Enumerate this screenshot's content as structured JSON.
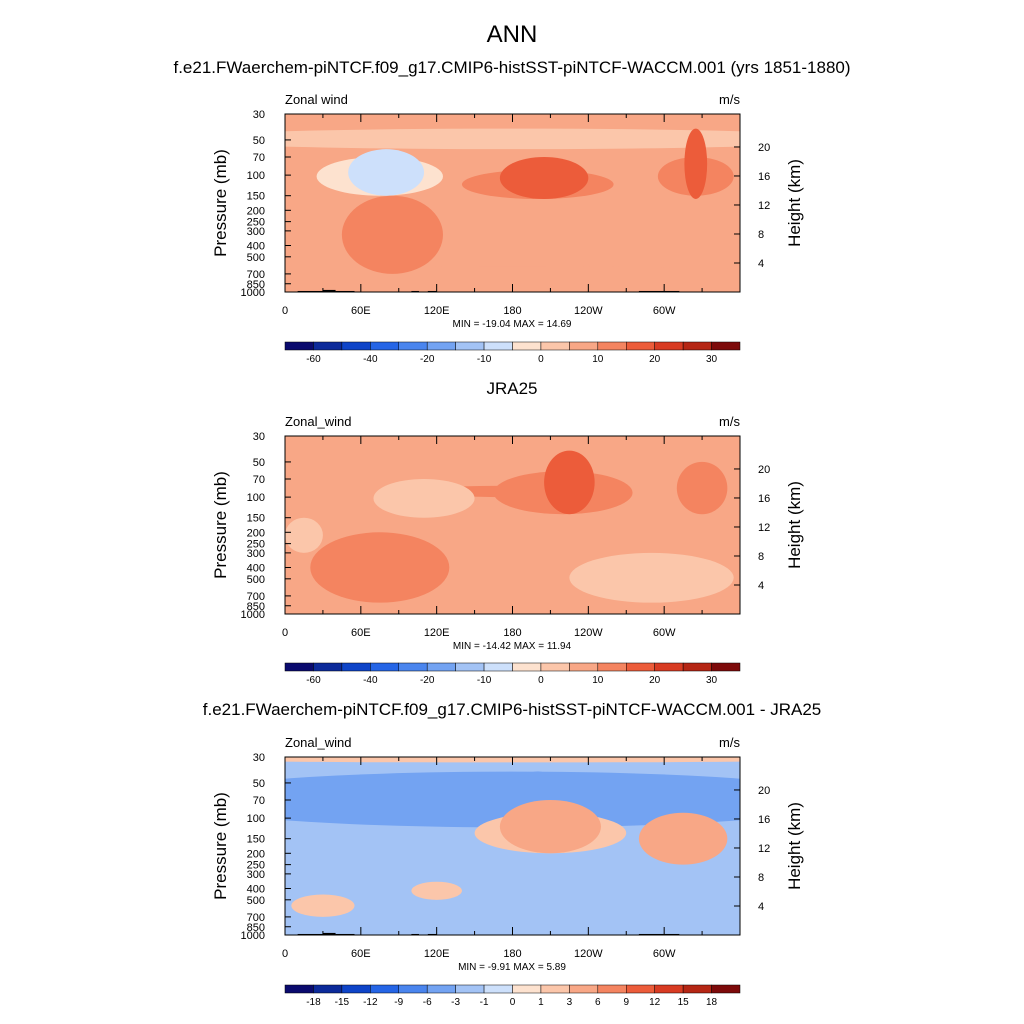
{
  "figure": {
    "title": "ANN"
  },
  "colors": {
    "full_scale": [
      "#0a0a6e",
      "#0c2a9a",
      "#0e44c8",
      "#2565e6",
      "#4a85ee",
      "#73a3f2",
      "#a3c3f5",
      "#cde0fb",
      "#fde2cf",
      "#fbc6aa",
      "#f8a786",
      "#f48460",
      "#ec5c3a",
      "#d83b22",
      "#b52614",
      "#7d0a0a"
    ],
    "diff_scale": [
      "#0a0a6e",
      "#0c2a9a",
      "#0e44c8",
      "#2565e6",
      "#4a85ee",
      "#73a3f2",
      "#a3c3f5",
      "#cde0fb",
      "#fde2cf",
      "#fbc6aa",
      "#f8a786",
      "#f48460",
      "#ec5c3a",
      "#d83b22",
      "#b52614",
      "#7d0a0a"
    ]
  },
  "chart_data": [
    {
      "type": "heatmap",
      "title": "f.e21.FWaerchem-piNTCF.f09_g17.CMIP6-histSST-piNTCF-WACCM.001 (yrs 1851-1880)",
      "left_label": "Zonal wind",
      "units": "m/s",
      "ylabel": "Pressure (mb)",
      "y2label": "Height (km)",
      "x_ticks": [
        "0",
        "60E",
        "120E",
        "180",
        "120W",
        "60W"
      ],
      "x_tick_values": [
        0,
        60,
        120,
        180,
        240,
        300
      ],
      "xlim": [
        0,
        360
      ],
      "y_ticks": [
        "30",
        "50",
        "70",
        "100",
        "150",
        "200",
        "250",
        "300",
        "400",
        "500",
        "700",
        "850",
        "1000"
      ],
      "y_tick_values": [
        30,
        50,
        70,
        100,
        150,
        200,
        250,
        300,
        400,
        500,
        700,
        850,
        1000
      ],
      "ylim": [
        1000,
        30
      ],
      "y_scale": "log",
      "y2_ticks": [
        "4",
        "8",
        "12",
        "16",
        "20"
      ],
      "y2_tick_values": [
        4,
        8,
        12,
        16,
        20
      ],
      "stats": "MIN = -19.04  MAX =  14.69",
      "min": -19.04,
      "max": 14.69,
      "colorbar_labels": [
        "-60",
        "-40",
        "-20",
        "-10",
        "0",
        "10",
        "20",
        "30"
      ],
      "colorbar_levels": [
        -70,
        -60,
        -50,
        -40,
        -30,
        -20,
        -15,
        -10,
        -5,
        0,
        5,
        10,
        15,
        20,
        25,
        30
      ],
      "background_value": 2,
      "features": [
        {
          "lon": 0,
          "lon_width": 360,
          "p": 600,
          "p_top": 1000,
          "value": 1.5
        },
        {
          "lon": 0,
          "lon_width": 360,
          "p": 60,
          "p_top": 40,
          "value": -3
        },
        {
          "lon": 75,
          "lon_width": 100,
          "p": 150,
          "p_top": 70,
          "value": -8
        },
        {
          "lon": 80,
          "lon_width": 60,
          "p": 150,
          "p_top": 60,
          "value": -12
        },
        {
          "lon": 200,
          "lon_width": 120,
          "p": 160,
          "p_top": 90,
          "value": 8
        },
        {
          "lon": 205,
          "lon_width": 70,
          "p": 160,
          "p_top": 70,
          "value": 14
        },
        {
          "lon": 325,
          "lon_width": 60,
          "p": 150,
          "p_top": 70,
          "value": 9
        },
        {
          "lon": 325,
          "lon_width": 18,
          "p": 160,
          "p_top": 40,
          "value": 14
        },
        {
          "lon": 85,
          "lon_width": 80,
          "p": 700,
          "p_top": 150,
          "value": 5
        }
      ]
    },
    {
      "type": "heatmap",
      "title": "JRA25",
      "left_label": "Zonal_wind",
      "units": "m/s",
      "ylabel": "Pressure (mb)",
      "y2label": "Height (km)",
      "x_ticks": [
        "0",
        "60E",
        "120E",
        "180",
        "120W",
        "60W"
      ],
      "x_tick_values": [
        0,
        60,
        120,
        180,
        240,
        300
      ],
      "xlim": [
        0,
        360
      ],
      "y_ticks": [
        "30",
        "50",
        "70",
        "100",
        "150",
        "200",
        "250",
        "300",
        "400",
        "500",
        "700",
        "850",
        "1000"
      ],
      "y_tick_values": [
        30,
        50,
        70,
        100,
        150,
        200,
        250,
        300,
        400,
        500,
        700,
        850,
        1000
      ],
      "ylim": [
        1000,
        30
      ],
      "y_scale": "log",
      "y2_ticks": [
        "4",
        "8",
        "12",
        "16",
        "20"
      ],
      "y2_tick_values": [
        4,
        8,
        12,
        16,
        20
      ],
      "stats": "MIN = -14.42  MAX =  11.94",
      "min": -14.42,
      "max": 11.94,
      "colorbar_labels": [
        "-60",
        "-40",
        "-20",
        "-10",
        "0",
        "10",
        "20",
        "30"
      ],
      "colorbar_levels": [
        -70,
        -60,
        -50,
        -40,
        -30,
        -20,
        -15,
        -10,
        -5,
        0,
        5,
        10,
        15,
        20,
        25,
        30
      ],
      "background_value": 2,
      "features": [
        {
          "lon": 180,
          "lon_width": 180,
          "p": 100,
          "p_top": 80,
          "value": 6
        },
        {
          "lon": 220,
          "lon_width": 110,
          "p": 140,
          "p_top": 60,
          "value": 8
        },
        {
          "lon": 225,
          "lon_width": 40,
          "p": 140,
          "p_top": 40,
          "value": 12
        },
        {
          "lon": 330,
          "lon_width": 40,
          "p": 140,
          "p_top": 50,
          "value": 7
        },
        {
          "lon": 15,
          "lon_width": 30,
          "p": 300,
          "p_top": 150,
          "value": -3
        },
        {
          "lon": 110,
          "lon_width": 80,
          "p": 150,
          "p_top": 70,
          "value": -4
        },
        {
          "lon": 290,
          "lon_width": 130,
          "p": 800,
          "p_top": 300,
          "value": -3
        },
        {
          "lon": 75,
          "lon_width": 110,
          "p": 800,
          "p_top": 200,
          "value": 5
        }
      ]
    },
    {
      "type": "heatmap",
      "title": "f.e21.FWaerchem-piNTCF.f09_g17.CMIP6-histSST-piNTCF-WACCM.001 - JRA25",
      "left_label": "Zonal_wind",
      "units": "m/s",
      "ylabel": "Pressure (mb)",
      "y2label": "Height (km)",
      "x_ticks": [
        "0",
        "60E",
        "120E",
        "180",
        "120W",
        "60W"
      ],
      "x_tick_values": [
        0,
        60,
        120,
        180,
        240,
        300
      ],
      "xlim": [
        0,
        360
      ],
      "y_ticks": [
        "30",
        "50",
        "70",
        "100",
        "150",
        "200",
        "250",
        "300",
        "400",
        "500",
        "700",
        "850",
        "1000"
      ],
      "y_tick_values": [
        30,
        50,
        70,
        100,
        150,
        200,
        250,
        300,
        400,
        500,
        700,
        850,
        1000
      ],
      "ylim": [
        1000,
        30
      ],
      "y_scale": "log",
      "y2_ticks": [
        "4",
        "8",
        "12",
        "16",
        "20"
      ],
      "y2_tick_values": [
        4,
        8,
        12,
        16,
        20
      ],
      "stats": "MIN =  -9.91  MAX =   5.89",
      "min": -9.91,
      "max": 5.89,
      "colorbar_labels": [
        "-18",
        "-15",
        "-12",
        "-9",
        "-6",
        "-3",
        "-1",
        "0",
        "1",
        "3",
        "6",
        "9",
        "12",
        "15",
        "18"
      ],
      "colorbar_levels": [
        -18,
        -15,
        -12,
        -9,
        -6,
        -3,
        -1,
        0,
        1,
        3,
        6,
        9,
        12,
        15,
        18
      ],
      "background_value": -2,
      "features": [
        {
          "lon": 0,
          "lon_width": 360,
          "p": 33,
          "p_top": 30,
          "value": 2
        },
        {
          "lon": 0,
          "lon_width": 360,
          "p": 60,
          "p_top": 45,
          "value": -7
        },
        {
          "lon": 200,
          "lon_width": 30,
          "p": 60,
          "p_top": 40,
          "value": -9
        },
        {
          "lon": 0,
          "lon_width": 360,
          "p": 120,
          "p_top": 40,
          "value": -4
        },
        {
          "lon": 210,
          "lon_width": 120,
          "p": 200,
          "p_top": 90,
          "value": 2
        },
        {
          "lon": 210,
          "lon_width": 80,
          "p": 200,
          "p_top": 70,
          "value": 4
        },
        {
          "lon": 315,
          "lon_width": 70,
          "p": 250,
          "p_top": 90,
          "value": 3
        },
        {
          "lon": 120,
          "lon_width": 40,
          "p": 500,
          "p_top": 350,
          "value": 1
        },
        {
          "lon": 30,
          "lon_width": 50,
          "p": 700,
          "p_top": 450,
          "value": 1
        }
      ]
    }
  ],
  "topography": {
    "lons": [
      [
        10,
        40
      ],
      [
        30,
        40
      ],
      [
        40,
        55
      ],
      [
        100,
        106
      ],
      [
        113,
        120
      ],
      [
        280,
        312
      ]
    ],
    "pressures": [
      980,
      960,
      980,
      980,
      980,
      980
    ]
  }
}
